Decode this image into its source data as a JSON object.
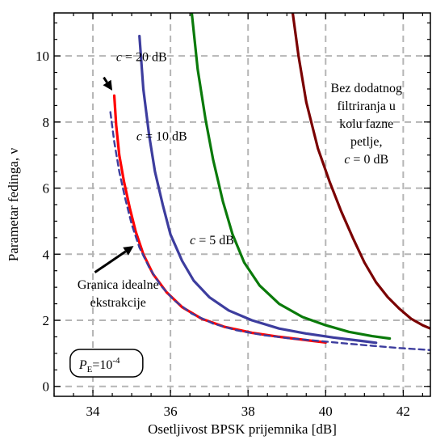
{
  "chart_data": {
    "type": "line",
    "title": "",
    "xlabel": "Osetljivost BPSK prijemnika [dB]",
    "ylabel": "Parametar fedinga, ν",
    "xlim": [
      33,
      42.7
    ],
    "ylim": [
      -0.3,
      11.3
    ],
    "xticks": [
      "34",
      "36",
      "38",
      "40",
      "42"
    ],
    "yticks": [
      "0",
      "2",
      "4",
      "6",
      "8",
      "10"
    ],
    "grid": true,
    "series": [
      {
        "name": "c = 0 dB",
        "color": "#7a0000",
        "dash": "solid",
        "points": [
          [
            39.15,
            11.3
          ],
          [
            39.3,
            10.0
          ],
          [
            39.5,
            8.6
          ],
          [
            39.8,
            7.2
          ],
          [
            40.1,
            6.2
          ],
          [
            40.4,
            5.3
          ],
          [
            40.7,
            4.5
          ],
          [
            41.0,
            3.75
          ],
          [
            41.3,
            3.15
          ],
          [
            41.6,
            2.7
          ],
          [
            41.9,
            2.35
          ],
          [
            42.2,
            2.05
          ],
          [
            42.5,
            1.85
          ],
          [
            42.7,
            1.75
          ]
        ]
      },
      {
        "name": "c = 5 dB",
        "color": "#0a7a0a",
        "dash": "solid",
        "points": [
          [
            36.55,
            11.3
          ],
          [
            36.7,
            9.6
          ],
          [
            36.9,
            8.1
          ],
          [
            37.1,
            6.85
          ],
          [
            37.35,
            5.6
          ],
          [
            37.6,
            4.6
          ],
          [
            37.9,
            3.75
          ],
          [
            38.3,
            3.05
          ],
          [
            38.8,
            2.5
          ],
          [
            39.4,
            2.1
          ],
          [
            40.0,
            1.85
          ],
          [
            40.6,
            1.65
          ],
          [
            41.2,
            1.52
          ],
          [
            41.65,
            1.45
          ]
        ]
      },
      {
        "name": "c = 10 dB",
        "color": "#3d3d9e",
        "dash": "solid",
        "points": [
          [
            35.2,
            10.6
          ],
          [
            35.3,
            9.0
          ],
          [
            35.45,
            7.6
          ],
          [
            35.6,
            6.5
          ],
          [
            35.8,
            5.5
          ],
          [
            36.0,
            4.6
          ],
          [
            36.3,
            3.8
          ],
          [
            36.6,
            3.2
          ],
          [
            37.0,
            2.7
          ],
          [
            37.5,
            2.3
          ],
          [
            38.1,
            2.0
          ],
          [
            38.8,
            1.75
          ],
          [
            39.5,
            1.6
          ],
          [
            40.2,
            1.48
          ],
          [
            40.9,
            1.38
          ],
          [
            41.3,
            1.32
          ]
        ]
      },
      {
        "name": "c = 20 dB",
        "color": "#ff0000",
        "dash": "solid",
        "points": [
          [
            34.55,
            8.8
          ],
          [
            34.6,
            7.9
          ],
          [
            34.68,
            7.0
          ],
          [
            34.8,
            6.2
          ],
          [
            34.95,
            5.4
          ],
          [
            35.1,
            4.7
          ],
          [
            35.3,
            4.0
          ],
          [
            35.55,
            3.4
          ],
          [
            35.9,
            2.85
          ],
          [
            36.3,
            2.4
          ],
          [
            36.8,
            2.05
          ],
          [
            37.4,
            1.8
          ],
          [
            38.1,
            1.62
          ],
          [
            38.8,
            1.5
          ],
          [
            39.5,
            1.4
          ],
          [
            40.0,
            1.33
          ]
        ]
      },
      {
        "name": "Granica idealne ekstrakcije",
        "color": "#3d3d9e",
        "dash": "dashed",
        "points": [
          [
            34.45,
            8.3
          ],
          [
            34.55,
            7.4
          ],
          [
            34.68,
            6.5
          ],
          [
            34.83,
            5.7
          ],
          [
            35.0,
            4.9
          ],
          [
            35.2,
            4.2
          ],
          [
            35.45,
            3.6
          ],
          [
            35.75,
            3.05
          ],
          [
            36.1,
            2.6
          ],
          [
            36.55,
            2.2
          ],
          [
            37.1,
            1.9
          ],
          [
            37.7,
            1.7
          ],
          [
            38.4,
            1.55
          ],
          [
            39.1,
            1.45
          ],
          [
            39.8,
            1.38
          ],
          [
            40.5,
            1.3
          ],
          [
            41.2,
            1.23
          ],
          [
            41.9,
            1.16
          ],
          [
            42.7,
            1.1
          ]
        ]
      }
    ],
    "annotations": {
      "c20": {
        "italic": "c",
        "text": " = 20 dB",
        "x": 34.6,
        "y": 9.85
      },
      "c10": {
        "italic": "c",
        "text": " = 10 dB",
        "x": 35.12,
        "y": 7.45
      },
      "c5": {
        "italic": "c",
        "text": " = 5 dB",
        "x": 36.5,
        "y": 4.3
      },
      "c0_lines": [
        "Bez dodatnog",
        "filtriranja u",
        "kolu fazne",
        "petlje,"
      ],
      "c0_last": {
        "italic": "c",
        "text": " = 0 dB"
      },
      "c0_pos": {
        "x": 41.05,
        "y": 8.9
      },
      "bound_lines": [
        "Granica idealne",
        "ekstrakcije"
      ],
      "bound_pos": {
        "x": 34.65,
        "y": 2.95
      },
      "pe_italic": "P",
      "pe_sub": "E",
      "pe_eq": "=10",
      "pe_exp": "-4",
      "pe_pos": {
        "x": 34.35,
        "y": 0.68
      }
    },
    "arrows": [
      {
        "from": [
          34.28,
          9.35
        ],
        "to": [
          34.5,
          8.95
        ]
      },
      {
        "from": [
          34.05,
          3.45
        ],
        "to": [
          35.05,
          4.25
        ]
      }
    ]
  }
}
